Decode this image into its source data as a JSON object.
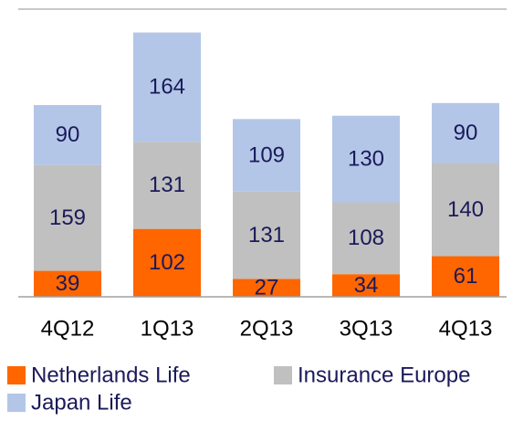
{
  "chart_data": {
    "type": "stacked-bar",
    "categories": [
      "4Q12",
      "1Q13",
      "2Q13",
      "3Q13",
      "4Q13"
    ],
    "series": [
      {
        "name": "Netherlands Life",
        "color": "#ff6600",
        "values": [
          39,
          102,
          27,
          34,
          61
        ]
      },
      {
        "name": "Insurance Europe",
        "color": "#c0c0c0",
        "values": [
          159,
          131,
          131,
          108,
          140
        ]
      },
      {
        "name": "Japan Life",
        "color": "#b3c6e7",
        "values": [
          90,
          164,
          109,
          130,
          90
        ]
      }
    ]
  }
}
